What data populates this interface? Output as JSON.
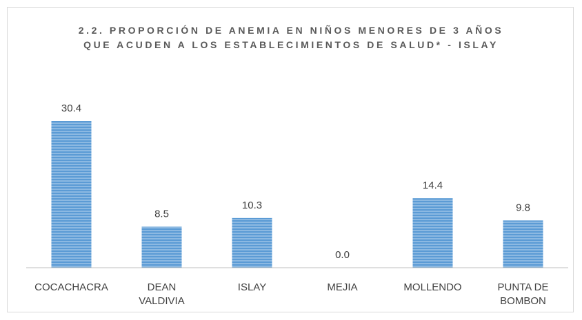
{
  "chart_data": {
    "type": "bar",
    "title": "2.2. PROPORCIÓN DE ANEMIA EN NIÑOS MENORES DE 3 AÑOS QUE ACUDEN A LOS ESTABLECIMIENTOS DE SALUD* - ISLAY",
    "categories": [
      "COCACHACRA",
      "DEAN VALDIVIA",
      "ISLAY",
      "MEJIA",
      "MOLLENDO",
      "PUNTA DE BOMBON"
    ],
    "values": [
      30.4,
      8.5,
      10.3,
      0.0,
      14.4,
      9.8
    ],
    "value_labels": [
      "30.4",
      "8.5",
      "10.3",
      "0.0",
      "14.4",
      "9.8"
    ],
    "color": "#5b9bd5"
  }
}
